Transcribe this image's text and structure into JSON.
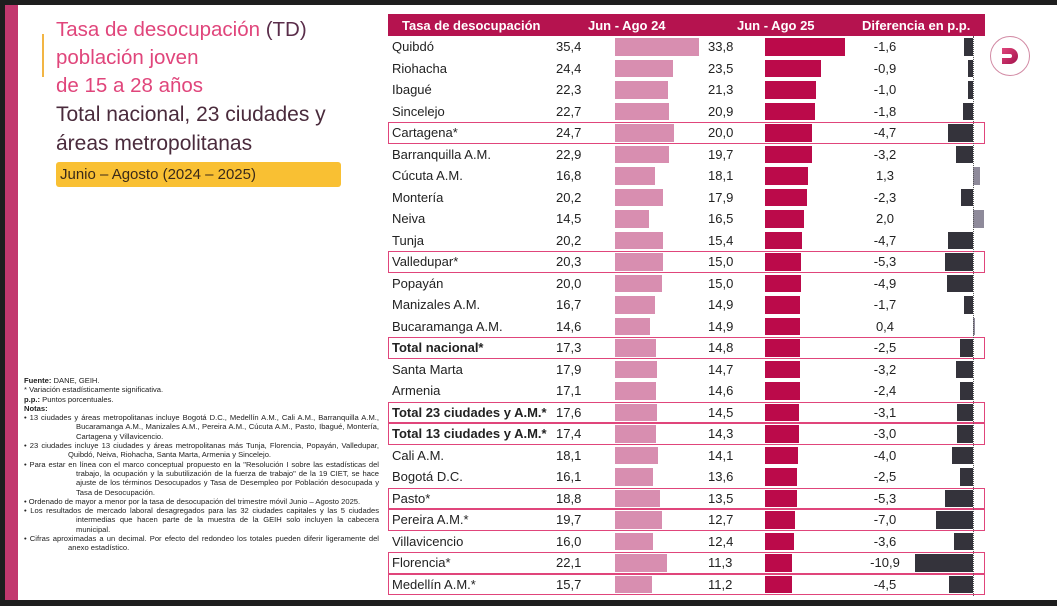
{
  "title": {
    "line1_pink": "Tasa de desocupación",
    "line1_dark": " (TD)",
    "line2": "población joven",
    "line3": "de 15 a 28 años",
    "line4": "Total nacional, 23 ciudades y",
    "line5": "áreas metropolitanas"
  },
  "period_badge": "Junio – Agosto (2024 – 2025)",
  "notes": {
    "fuente_label": "Fuente:",
    "fuente_text": " DANE, GEIH.",
    "asterisk": "* Variación estadísticamente significativa.",
    "pp_label": "p.p.:",
    "pp_text": " Puntos porcentuales.",
    "notas_label": "Notas:",
    "items": [
      "• 13 ciudades y áreas metropolitanas incluye Bogotá D.C., Medellín A.M., Cali A.M., Barranquilla A.M., Bucaramanga A.M., Manizales A.M., Pereira A.M., Cúcuta A.M., Pasto, Ibagué, Montería, Cartagena y Villavicencio.",
      "• 23 ciudades incluye 13 ciudades y áreas metropolitanas más Tunja, Florencia, Popayán, Valledupar, Quibdó, Neiva, Riohacha, Santa Marta, Armenia y Sincelejo.",
      "• Para estar en línea con el marco conceptual propuesto en la \"Resolución I sobre las estadísticas del trabajo, la ocupación y la subutilización de la fuerza de trabajo\" de la 19 CIET, se hace ajuste de los términos Desocupados y Tasa de Desempleo por Población desocupada y Tasa de Desocupación.",
      "• Ordenado de mayor a menor por la tasa de desocupación del trimestre móvil Junio – Agosto 2025.",
      "• Los resultados de mercado laboral desagregados para las 32 ciudades capitales y las 5 ciudades intermedias que hacen parte de la muestra de la GEIH solo incluyen la cabecera municipal.",
      "• Cifras aproximadas a un decimal. Por efecto del redondeo los totales pueden diferir ligeramente del anexo estadístico."
    ]
  },
  "logo": {
    "icon": "dane-d-logo-icon",
    "letter": "D"
  },
  "colors": {
    "header_bg": "#b5134f",
    "bar_2024": "#d88eb0",
    "bar_2025": "#bb0a4a",
    "diff_negative": "#34333b",
    "diff_positive": "#8e8a9a",
    "highlight_border": "#e0457b",
    "badge": "#f9c033"
  },
  "chart_data": {
    "type": "table",
    "title": "Tasa de desocupación (TD) población joven de 15 a 28 años — Total nacional, 23 ciudades y áreas metropolitanas — Junio – Agosto (2024 – 2025)",
    "columns": [
      "Tasa de desocupación",
      "Jun - Ago 24",
      "Jun - Ago 25",
      "Diferencia en p.p."
    ],
    "unit": "%",
    "rows": [
      {
        "label": "Quibdó",
        "v24": 35.4,
        "v25": 33.8,
        "diff": -1.6,
        "highlight": false,
        "bold": false
      },
      {
        "label": "Riohacha",
        "v24": 24.4,
        "v25": 23.5,
        "diff": -0.9,
        "highlight": false,
        "bold": false
      },
      {
        "label": "Ibagué",
        "v24": 22.3,
        "v25": 21.3,
        "diff": -1.0,
        "highlight": false,
        "bold": false
      },
      {
        "label": "Sincelejo",
        "v24": 22.7,
        "v25": 20.9,
        "diff": -1.8,
        "highlight": false,
        "bold": false
      },
      {
        "label": "Cartagena*",
        "v24": 24.7,
        "v25": 20.0,
        "diff": -4.7,
        "highlight": true,
        "bold": false
      },
      {
        "label": "Barranquilla A.M.",
        "v24": 22.9,
        "v25": 19.7,
        "diff": -3.2,
        "highlight": false,
        "bold": false
      },
      {
        "label": "Cúcuta A.M.",
        "v24": 16.8,
        "v25": 18.1,
        "diff": 1.3,
        "highlight": false,
        "bold": false
      },
      {
        "label": "Montería",
        "v24": 20.2,
        "v25": 17.9,
        "diff": -2.3,
        "highlight": false,
        "bold": false
      },
      {
        "label": "Neiva",
        "v24": 14.5,
        "v25": 16.5,
        "diff": 2.0,
        "highlight": false,
        "bold": false
      },
      {
        "label": "Tunja",
        "v24": 20.2,
        "v25": 15.4,
        "diff": -4.7,
        "highlight": false,
        "bold": false
      },
      {
        "label": "Valledupar*",
        "v24": 20.3,
        "v25": 15.0,
        "diff": -5.3,
        "highlight": true,
        "bold": false
      },
      {
        "label": "Popayán",
        "v24": 20.0,
        "v25": 15.0,
        "diff": -4.9,
        "highlight": false,
        "bold": false
      },
      {
        "label": "Manizales A.M.",
        "v24": 16.7,
        "v25": 14.9,
        "diff": -1.7,
        "highlight": false,
        "bold": false
      },
      {
        "label": "Bucaramanga A.M.",
        "v24": 14.6,
        "v25": 14.9,
        "diff": 0.4,
        "highlight": false,
        "bold": false
      },
      {
        "label": "Total nacional*",
        "v24": 17.3,
        "v25": 14.8,
        "diff": -2.5,
        "highlight": true,
        "bold": true
      },
      {
        "label": "Santa Marta",
        "v24": 17.9,
        "v25": 14.7,
        "diff": -3.2,
        "highlight": false,
        "bold": false
      },
      {
        "label": "Armenia",
        "v24": 17.1,
        "v25": 14.6,
        "diff": -2.4,
        "highlight": false,
        "bold": false
      },
      {
        "label": "Total 23 ciudades y A.M.*",
        "v24": 17.6,
        "v25": 14.5,
        "diff": -3.1,
        "highlight": true,
        "bold": true
      },
      {
        "label": "Total 13 ciudades y A.M.*",
        "v24": 17.4,
        "v25": 14.3,
        "diff": -3.0,
        "highlight": true,
        "bold": true
      },
      {
        "label": "Cali A.M.",
        "v24": 18.1,
        "v25": 14.1,
        "diff": -4.0,
        "highlight": false,
        "bold": false
      },
      {
        "label": "Bogotá D.C.",
        "v24": 16.1,
        "v25": 13.6,
        "diff": -2.5,
        "highlight": false,
        "bold": false
      },
      {
        "label": "Pasto*",
        "v24": 18.8,
        "v25": 13.5,
        "diff": -5.3,
        "highlight": true,
        "bold": false
      },
      {
        "label": "Pereira A.M.*",
        "v24": 19.7,
        "v25": 12.7,
        "diff": -7.0,
        "highlight": true,
        "bold": false
      },
      {
        "label": "Villavicencio",
        "v24": 16.0,
        "v25": 12.4,
        "diff": -3.6,
        "highlight": false,
        "bold": false
      },
      {
        "label": "Florencia*",
        "v24": 22.1,
        "v25": 11.3,
        "diff": -10.9,
        "highlight": true,
        "bold": false
      },
      {
        "label": "Medellín A.M.*",
        "v24": 15.7,
        "v25": 11.2,
        "diff": -4.5,
        "highlight": true,
        "bold": false
      }
    ],
    "bar_scale_max": 35.4,
    "diff_range": [
      -10.9,
      2.0
    ],
    "decimal_separator": ","
  }
}
